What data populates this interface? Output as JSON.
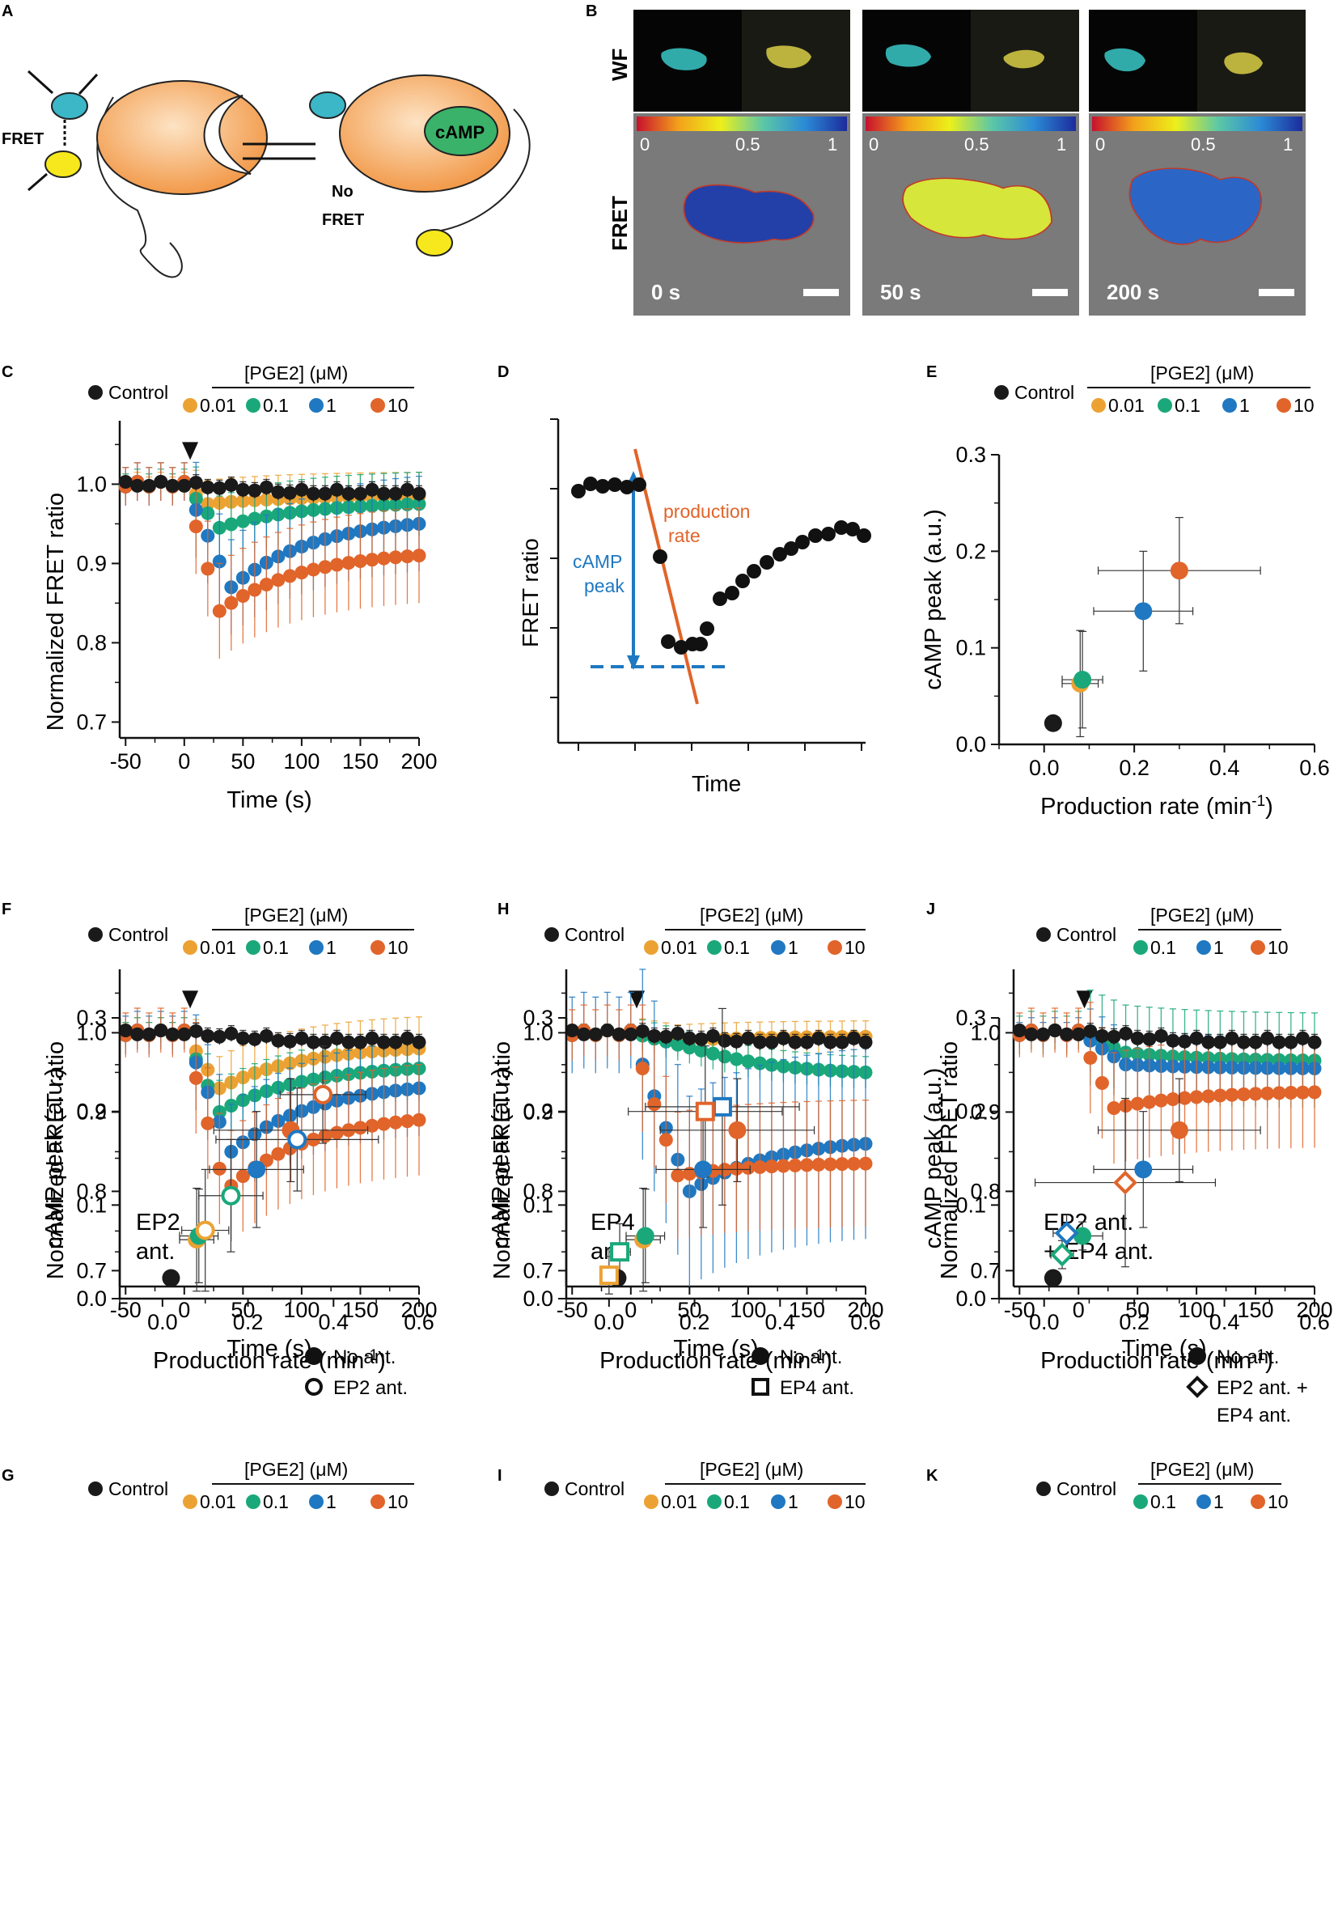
{
  "colors": {
    "control": "#1a1a1a",
    "c001": "#eca233",
    "c01": "#1aa87a",
    "c1": "#1f78c1",
    "c10": "#e1642a",
    "axis": "#111111"
  },
  "panel_labels": [
    "A",
    "B",
    "C",
    "D",
    "E",
    "F",
    "G",
    "H",
    "I",
    "J",
    "K"
  ],
  "panelA": {
    "fret": "FRET",
    "camp": "cAMP",
    "no_fret": "No\nFRET"
  },
  "panelB": {
    "wf": "WF",
    "fret": "FRET",
    "ticks": [
      "0",
      "0.5",
      "1"
    ],
    "times": [
      "0 s",
      "50 s",
      "200 s"
    ]
  },
  "legend": {
    "control": "Control",
    "pge2": "[PGE2] (μM)",
    "concs": [
      "0.01",
      "0.1",
      "1",
      "10"
    ]
  },
  "axes": {
    "time_x_ticks": [
      "-50",
      "0",
      "50",
      "100",
      "150",
      "200"
    ],
    "ratio_y_ticks": [
      "0.7",
      "0.8",
      "0.9",
      "1.0"
    ],
    "camp_y_ticks": [
      "0.0",
      "0.1",
      "0.2",
      "0.3"
    ],
    "rate_x_ticks": [
      "0.0",
      "0.2",
      "0.4",
      "0.6"
    ],
    "time_xlabel": "Time (s)",
    "ratio_ylabel": "Normalized FRET ratio",
    "camp_ylabel": "cAMP peak (a.u.)",
    "rate_xlabel": "Production rate (min",
    "rate_sup": "-1",
    "rate_close": ")"
  },
  "panelD": {
    "ylabel": "FRET ratio",
    "xlabel": "Time",
    "prod": "production",
    "rate": "rate",
    "camp": "cAMP",
    "peak": "peak"
  },
  "annotations": {
    "F": [
      "EP2",
      "ant."
    ],
    "H": [
      "EP4",
      "ant."
    ],
    "J": [
      "EP2 ant.",
      "+ EP4 ant."
    ]
  },
  "scatter_legends": {
    "G": [
      "No ant.",
      "EP2 ant."
    ],
    "I": [
      "No ant.",
      "EP4 ant."
    ],
    "K": [
      "No ant.",
      "EP2 ant. +",
      "EP4 ant."
    ]
  },
  "chart_data": [
    {
      "id": "C",
      "type": "line",
      "title": "",
      "xlabel": "Time (s)",
      "ylabel": "Normalized FRET ratio",
      "xlim": [
        -55,
        200
      ],
      "ylim": [
        0.68,
        1.08
      ],
      "series": [
        {
          "name": "Control",
          "kind": "flat",
          "final": 0.99,
          "err": 0.01
        },
        {
          "name": "0.01",
          "kind": "decay",
          "min": 0.975,
          "mint": 20,
          "final": 0.985,
          "err": 0.03
        },
        {
          "name": "0.1",
          "kind": "decay",
          "min": 0.945,
          "mint": 30,
          "final": 0.975,
          "err": 0.04
        },
        {
          "name": "1",
          "kind": "decay",
          "min": 0.87,
          "mint": 40,
          "final": 0.95,
          "err": 0.06
        },
        {
          "name": "10",
          "kind": "decay",
          "min": 0.84,
          "mint": 30,
          "final": 0.91,
          "err": 0.06
        }
      ]
    },
    {
      "id": "F",
      "type": "line",
      "title": "",
      "xlabel": "Time (s)",
      "ylabel": "Normalized FRET ratio",
      "xlim": [
        -55,
        200
      ],
      "ylim": [
        0.68,
        1.08
      ],
      "series": [
        {
          "name": "Control",
          "kind": "flat",
          "final": 0.99,
          "err": 0.01
        },
        {
          "name": "0.01",
          "kind": "decay",
          "min": 0.93,
          "mint": 30,
          "final": 0.98,
          "err": 0.04
        },
        {
          "name": "0.1",
          "kind": "decay",
          "min": 0.9,
          "mint": 30,
          "final": 0.955,
          "err": 0.04
        },
        {
          "name": "1",
          "kind": "decay",
          "min": 0.85,
          "mint": 40,
          "final": 0.93,
          "err": 0.06
        },
        {
          "name": "10",
          "kind": "decay",
          "min": 0.8,
          "mint": 35,
          "final": 0.89,
          "err": 0.07
        }
      ]
    },
    {
      "id": "H",
      "type": "line",
      "title": "",
      "xlabel": "Time (s)",
      "ylabel": "Normalized FRET ratio",
      "xlim": [
        -55,
        200
      ],
      "ylim": [
        0.68,
        1.08
      ],
      "series": [
        {
          "name": "Control",
          "kind": "flat",
          "final": 0.99,
          "err": 0.01
        },
        {
          "name": "0.01",
          "kind": "decay",
          "min": 0.99,
          "mint": 40,
          "final": 0.995,
          "err": 0.02
        },
        {
          "name": "0.1",
          "kind": "decay",
          "min": 0.97,
          "mint": 80,
          "final": 0.95,
          "err": 0.02
        },
        {
          "name": "1",
          "kind": "decay",
          "min": 0.8,
          "mint": 50,
          "final": 0.86,
          "err": 0.12
        },
        {
          "name": "10",
          "kind": "decay",
          "min": 0.82,
          "mint": 40,
          "final": 0.835,
          "err": 0.08
        }
      ]
    },
    {
      "id": "J",
      "type": "line",
      "title": "",
      "xlabel": "Time (s)",
      "ylabel": "Normalized FRET ratio",
      "xlim": [
        -55,
        200
      ],
      "ylim": [
        0.68,
        1.08
      ],
      "series": [
        {
          "name": "Control",
          "kind": "flat",
          "final": 0.99,
          "err": 0.01
        },
        {
          "name": "0.1",
          "kind": "decay",
          "min": 0.975,
          "mint": 40,
          "final": 0.965,
          "err": 0.06
        },
        {
          "name": "1",
          "kind": "decay",
          "min": 0.96,
          "mint": 40,
          "final": 0.955,
          "err": 0.04
        },
        {
          "name": "10",
          "kind": "decay",
          "min": 0.905,
          "mint": 30,
          "final": 0.925,
          "err": 0.07
        }
      ]
    },
    {
      "id": "E",
      "type": "scatter",
      "xlabel": "Production rate (min-1)",
      "ylabel": "cAMP peak (a.u.)",
      "xlim": [
        -0.1,
        0.6
      ],
      "ylim": [
        0,
        0.3
      ],
      "points": [
        {
          "series": "Control",
          "x": 0.02,
          "y": 0.022,
          "xe": 0,
          "ye": 0
        },
        {
          "series": "0.01",
          "x": 0.08,
          "y": 0.063,
          "xe": 0.04,
          "ye": 0.055
        },
        {
          "series": "0.1",
          "x": 0.085,
          "y": 0.067,
          "xe": 0.045,
          "ye": 0.05
        },
        {
          "series": "1",
          "x": 0.22,
          "y": 0.138,
          "xe": 0.11,
          "ye": 0.062
        },
        {
          "series": "10",
          "x": 0.3,
          "y": 0.18,
          "xe": 0.18,
          "ye": 0.055
        }
      ]
    },
    {
      "id": "G",
      "type": "scatter",
      "xlabel": "Production rate (min-1)",
      "ylabel": "cAMP peak (a.u.)",
      "xlim": [
        -0.1,
        0.6
      ],
      "ylim": [
        0,
        0.3
      ],
      "points": [
        {
          "series": "Control",
          "x": 0.02,
          "y": 0.022,
          "xe": 0,
          "ye": 0
        },
        {
          "series": "0.01",
          "x": 0.08,
          "y": 0.063,
          "xe": 0.04,
          "ye": 0.055
        },
        {
          "series": "0.1",
          "x": 0.085,
          "y": 0.067,
          "xe": 0.045,
          "ye": 0.05
        },
        {
          "series": "1",
          "x": 0.22,
          "y": 0.138,
          "xe": 0.11,
          "ye": 0.062
        },
        {
          "series": "10",
          "x": 0.3,
          "y": 0.18,
          "xe": 0.18,
          "ye": 0.055
        },
        {
          "series": "0.01 EP2",
          "x": 0.1,
          "y": 0.073,
          "xe": 0.055,
          "ye": 0.065,
          "open": true
        },
        {
          "series": "0.1 EP2",
          "x": 0.16,
          "y": 0.11,
          "xe": 0.075,
          "ye": 0.06,
          "open": true
        },
        {
          "series": "1 EP2",
          "x": 0.315,
          "y": 0.17,
          "xe": 0.19,
          "ye": 0.055,
          "open": true
        },
        {
          "series": "10 EP2",
          "x": 0.375,
          "y": 0.218,
          "xe": 0.1,
          "ye": 0.052,
          "open": true
        }
      ]
    },
    {
      "id": "I",
      "type": "scatter",
      "xlabel": "Production rate (min-1)",
      "ylabel": "cAMP peak (a.u.)",
      "xlim": [
        -0.1,
        0.6
      ],
      "ylim": [
        0,
        0.3
      ],
      "points": [
        {
          "series": "Control",
          "x": 0.02,
          "y": 0.022,
          "xe": 0,
          "ye": 0
        },
        {
          "series": "0.01",
          "x": 0.08,
          "y": 0.063,
          "xe": 0.04,
          "ye": 0.055
        },
        {
          "series": "0.1",
          "x": 0.085,
          "y": 0.067,
          "xe": 0.045,
          "ye": 0.05
        },
        {
          "series": "1",
          "x": 0.22,
          "y": 0.138,
          "xe": 0.11,
          "ye": 0.062
        },
        {
          "series": "10",
          "x": 0.3,
          "y": 0.18,
          "xe": 0.18,
          "ye": 0.055
        },
        {
          "series": "0.01 EP4",
          "x": 0.0,
          "y": 0.025,
          "xe": 0.02,
          "ye": 0.02,
          "sq": true
        },
        {
          "series": "0.1 EP4",
          "x": 0.025,
          "y": 0.05,
          "xe": 0.025,
          "ye": 0.03,
          "sq": true
        },
        {
          "series": "1 EP4",
          "x": 0.265,
          "y": 0.205,
          "xe": 0.18,
          "ye": 0.105,
          "sq": true
        },
        {
          "series": "10 EP4",
          "x": 0.225,
          "y": 0.2,
          "xe": 0.18,
          "ye": 0.07,
          "sq": true
        }
      ]
    },
    {
      "id": "K",
      "type": "scatter",
      "xlabel": "Production rate (min-1)",
      "ylabel": "cAMP peak (a.u.)",
      "xlim": [
        -0.1,
        0.6
      ],
      "ylim": [
        0,
        0.3
      ],
      "points": [
        {
          "series": "Control",
          "x": 0.02,
          "y": 0.022,
          "xe": 0,
          "ye": 0
        },
        {
          "series": "0.1",
          "x": 0.085,
          "y": 0.067,
          "xe": 0.045,
          "ye": 0.015
        },
        {
          "series": "1",
          "x": 0.22,
          "y": 0.138,
          "xe": 0.11,
          "ye": 0.062
        },
        {
          "series": "10",
          "x": 0.3,
          "y": 0.18,
          "xe": 0.18,
          "ye": 0.055
        },
        {
          "series": "0.1 EP2+EP4",
          "x": 0.04,
          "y": 0.047,
          "xe": 0.025,
          "ye": 0.015,
          "dia": true
        },
        {
          "series": "1 EP2+EP4",
          "x": 0.05,
          "y": 0.07,
          "xe": 0.03,
          "ye": 0.02,
          "dia": true
        },
        {
          "series": "10 EP2+EP4",
          "x": 0.18,
          "y": 0.124,
          "xe": 0.2,
          "ye": 0.09,
          "dia": true
        }
      ]
    }
  ]
}
